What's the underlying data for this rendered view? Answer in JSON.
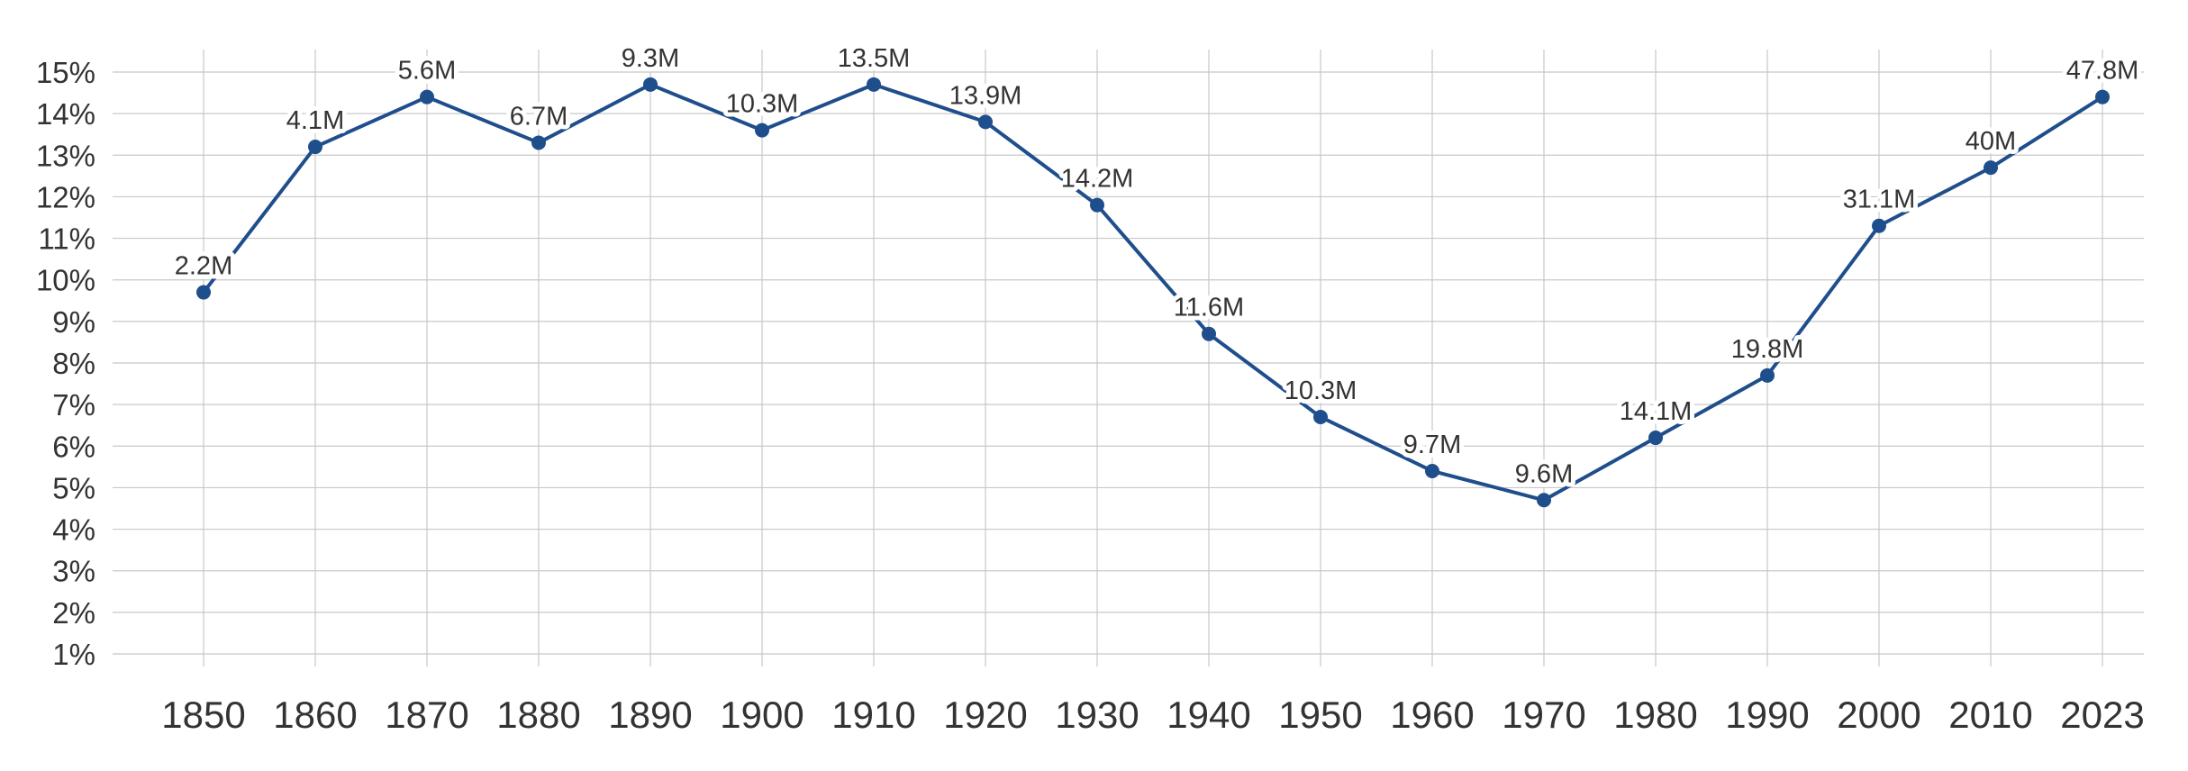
{
  "chart_data": {
    "type": "line",
    "title": "",
    "xlabel": "",
    "ylabel": "",
    "ylim": [
      1,
      15
    ],
    "y_ticks": [
      {
        "value": 1,
        "label": "1%"
      },
      {
        "value": 2,
        "label": "2%"
      },
      {
        "value": 3,
        "label": "3%"
      },
      {
        "value": 4,
        "label": "4%"
      },
      {
        "value": 5,
        "label": "5%"
      },
      {
        "value": 6,
        "label": "6%"
      },
      {
        "value": 7,
        "label": "7%"
      },
      {
        "value": 8,
        "label": "8%"
      },
      {
        "value": 9,
        "label": "9%"
      },
      {
        "value": 10,
        "label": "10%"
      },
      {
        "value": 11,
        "label": "11%"
      },
      {
        "value": 12,
        "label": "12%"
      },
      {
        "value": 13,
        "label": "13%"
      },
      {
        "value": 14,
        "label": "14%"
      },
      {
        "value": 15,
        "label": "15%"
      }
    ],
    "grid": true,
    "legend": "none",
    "color": "#1f4e8c",
    "categories": [
      "1850",
      "1860",
      "1870",
      "1880",
      "1890",
      "1900",
      "1910",
      "1920",
      "1930",
      "1940",
      "1950",
      "1960",
      "1970",
      "1980",
      "1990",
      "2000",
      "2010",
      "2023"
    ],
    "series": [
      {
        "values": [
          9.7,
          13.2,
          14.4,
          13.3,
          14.7,
          13.6,
          14.7,
          13.8,
          11.8,
          8.7,
          6.7,
          5.4,
          4.7,
          6.2,
          7.7,
          11.3,
          12.7,
          14.4
        ],
        "labels": [
          "2.2M",
          "4.1M",
          "5.6M",
          "6.7M",
          "9.3M",
          "10.3M",
          "13.5M",
          "13.9M",
          "14.2M",
          "11.6M",
          "10.3M",
          "9.7M",
          "9.6M",
          "14.1M",
          "19.8M",
          "31.1M",
          "40M",
          "47.8M"
        ]
      }
    ]
  }
}
